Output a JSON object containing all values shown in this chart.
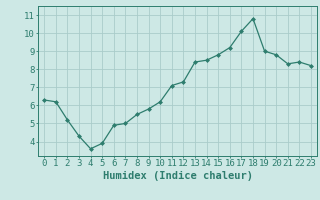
{
  "x": [
    0,
    1,
    2,
    3,
    4,
    5,
    6,
    7,
    8,
    9,
    10,
    11,
    12,
    13,
    14,
    15,
    16,
    17,
    18,
    19,
    20,
    21,
    22,
    23
  ],
  "y": [
    6.3,
    6.2,
    5.2,
    4.3,
    3.6,
    3.9,
    4.9,
    5.0,
    5.5,
    5.8,
    6.2,
    7.1,
    7.3,
    8.4,
    8.5,
    8.8,
    9.2,
    10.1,
    10.8,
    9.0,
    8.8,
    8.3,
    8.4,
    8.2
  ],
  "xlabel": "Humidex (Indice chaleur)",
  "ylim": [
    3.2,
    11.5
  ],
  "xlim": [
    -0.5,
    23.5
  ],
  "yticks": [
    4,
    5,
    6,
    7,
    8,
    9,
    10,
    11
  ],
  "xticks": [
    0,
    1,
    2,
    3,
    4,
    5,
    6,
    7,
    8,
    9,
    10,
    11,
    12,
    13,
    14,
    15,
    16,
    17,
    18,
    19,
    20,
    21,
    22,
    23
  ],
  "line_color": "#2e7d6e",
  "marker": "D",
  "marker_size": 2.0,
  "bg_color": "#cde8e5",
  "grid_color": "#aaccca",
  "axis_color": "#2e7d6e",
  "tick_color": "#2e7d6e",
  "label_color": "#2e7d6e",
  "xlabel_fontsize": 7.5,
  "tick_fontsize": 6.5,
  "linewidth": 0.9
}
